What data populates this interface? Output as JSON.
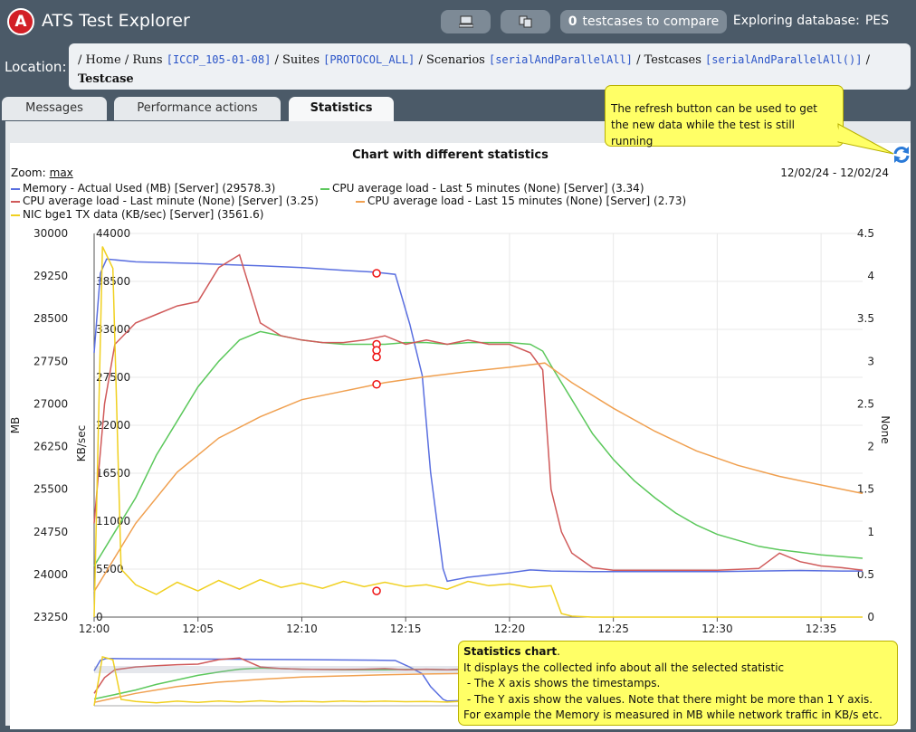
{
  "app": {
    "title": "ATS Test Explorer",
    "logo_text": "A"
  },
  "toolbar": {
    "compare_count": "0",
    "compare_label": "testcases to compare",
    "database_label": "Exploring database:",
    "database_name": "PES",
    "icons": [
      "computer-icon",
      "copy-icon"
    ]
  },
  "location": {
    "label": "Location:",
    "crumbs": [
      {
        "text": "Home",
        "link": ""
      },
      {
        "text": "Runs",
        "link": "[ICCP_105-01-08]"
      },
      {
        "text": "Suites",
        "link": "[PROTOCOL_ALL]"
      },
      {
        "text": "Scenarios",
        "link": "[serialAndParallelAll]"
      },
      {
        "text": "Testcases",
        "link": "[serialAndParallelAll()]"
      },
      {
        "text": "Testcase",
        "link": ""
      }
    ]
  },
  "tabs": [
    {
      "label": "Messages",
      "active": false
    },
    {
      "label": "Performance actions",
      "active": false
    },
    {
      "label": "Statistics",
      "active": true
    }
  ],
  "chart_header": {
    "zoom_label": "Zoom:",
    "zoom_value": "max",
    "date_range": "12/02/24 - 12/02/24"
  },
  "tooltip_refresh": "The refresh button can be used to get the new data while the test is still running",
  "tooltip_stats": {
    "title": "Statistics chart",
    "line1": "It displays the collected info about all the selected statistic",
    "line2": " - The X axis shows the timestamps.",
    "line3": " - The Y axis show the values. Note that there might be more than 1 Y axis.",
    "line4": "For example the Memory is measured in MB while network traffic in KB/s etc."
  },
  "colors": {
    "memory": "#5a6fe0",
    "cpu5": "#5cc85c",
    "cpu1": "#d05a5a",
    "cpu15": "#f0a050",
    "nic": "#f0d020",
    "marker": "#ee1111",
    "refresh": "#2a7ad8"
  },
  "chart_data": {
    "type": "line",
    "title": "Chart with different statistics",
    "x_ticks": [
      "12:00",
      "12:05",
      "12:10",
      "12:15",
      "12:20",
      "12:25",
      "12:30",
      "12:35"
    ],
    "x_range_minutes": [
      0,
      37
    ],
    "y_axes": [
      {
        "label": "MB",
        "ticks": [
          "30000",
          "29250",
          "28500",
          "27750",
          "27000",
          "26250",
          "25500",
          "24750",
          "24000",
          "23250"
        ],
        "range": [
          23250,
          30000
        ]
      },
      {
        "label": "KB/sec",
        "ticks": [
          "44000",
          "38500",
          "33000",
          "27500",
          "22000",
          "16500",
          "11000",
          "5500",
          "0"
        ],
        "range": [
          0,
          44000
        ]
      },
      {
        "label": "None",
        "ticks": [
          "4.5",
          "4",
          "3.5",
          "3",
          "2.5",
          "2",
          "1.5",
          "1",
          "0.5",
          "0"
        ],
        "range": [
          0,
          4.5
        ]
      }
    ],
    "series": [
      {
        "name": "Memory - Actual Used (MB) [Server] (29578.3)",
        "axis": 0,
        "color_key": "memory",
        "x": [
          0,
          0.3,
          0.6,
          2,
          5,
          8,
          10,
          12,
          13.5,
          14.5,
          15.2,
          15.8,
          16.2,
          16.8,
          17,
          18,
          20,
          21,
          22,
          24,
          26,
          28,
          30,
          32,
          34,
          36,
          37
        ],
        "y": [
          27900,
          29300,
          29550,
          29500,
          29470,
          29430,
          29400,
          29350,
          29320,
          29280,
          28400,
          27500,
          25800,
          24100,
          23880,
          23950,
          24030,
          24080,
          24060,
          24050,
          24050,
          24050,
          24050,
          24060,
          24070,
          24060,
          24060
        ]
      },
      {
        "name": "CPU average load - Last 5 minutes (None) [Server] (3.34)",
        "axis": 2,
        "color_key": "cpu5",
        "x": [
          0,
          1,
          2,
          3,
          4,
          5,
          6,
          7,
          8,
          9,
          10,
          11,
          12,
          13,
          14,
          15,
          16,
          17,
          18,
          19,
          20,
          21,
          21.6,
          22,
          23,
          24,
          25,
          26,
          27,
          28,
          29,
          30,
          31,
          32,
          33,
          34,
          35,
          36,
          37
        ],
        "y": [
          0.6,
          1.0,
          1.4,
          1.9,
          2.3,
          2.7,
          3.0,
          3.25,
          3.35,
          3.3,
          3.25,
          3.22,
          3.2,
          3.2,
          3.2,
          3.22,
          3.22,
          3.2,
          3.22,
          3.22,
          3.22,
          3.2,
          3.12,
          2.95,
          2.55,
          2.15,
          1.85,
          1.6,
          1.4,
          1.22,
          1.08,
          0.97,
          0.9,
          0.83,
          0.79,
          0.76,
          0.73,
          0.71,
          0.69
        ]
      },
      {
        "name": "CPU average load - Last minute (None) [Server] (3.25)",
        "axis": 2,
        "color_key": "cpu1",
        "x": [
          0,
          0.5,
          1,
          2,
          3,
          4,
          5,
          6,
          7,
          8,
          9,
          10,
          11,
          12,
          13,
          14,
          15,
          16,
          17,
          18,
          19,
          20,
          21,
          21.6,
          22,
          22.5,
          23,
          24,
          25,
          26,
          27,
          28,
          29,
          30,
          31,
          32,
          33,
          34,
          35,
          36,
          37
        ],
        "y": [
          1.1,
          2.5,
          3.2,
          3.45,
          3.55,
          3.65,
          3.7,
          4.1,
          4.25,
          3.45,
          3.3,
          3.25,
          3.22,
          3.22,
          3.25,
          3.3,
          3.2,
          3.25,
          3.2,
          3.25,
          3.2,
          3.2,
          3.1,
          2.9,
          1.5,
          1.0,
          0.75,
          0.58,
          0.55,
          0.55,
          0.55,
          0.55,
          0.55,
          0.55,
          0.56,
          0.57,
          0.75,
          0.65,
          0.6,
          0.58,
          0.55
        ]
      },
      {
        "name": "CPU average load - Last 15 minutes (None) [Server] (2.73)",
        "axis": 2,
        "color_key": "cpu15",
        "x": [
          0,
          2,
          4,
          6,
          8,
          10,
          12,
          14,
          16,
          18,
          20,
          21.7,
          23,
          25,
          27,
          29,
          31,
          33,
          35,
          37
        ],
        "y": [
          0.3,
          1.1,
          1.7,
          2.1,
          2.35,
          2.55,
          2.65,
          2.75,
          2.82,
          2.88,
          2.93,
          2.98,
          2.75,
          2.45,
          2.18,
          1.95,
          1.78,
          1.65,
          1.55,
          1.45
        ]
      },
      {
        "name": "NIC bge1 TX data (KB/sec) [Server] (3561.6)",
        "axis": 1,
        "color_key": "nic",
        "x": [
          0,
          0.4,
          0.9,
          1.3,
          2,
          3,
          4,
          5,
          6,
          7,
          8,
          9,
          10,
          11,
          12,
          13,
          14,
          15,
          16,
          17,
          18,
          19,
          20,
          21,
          22,
          22.5,
          23,
          24,
          25,
          26,
          30,
          34,
          37
        ],
        "y": [
          0,
          42500,
          40000,
          5500,
          3700,
          2600,
          4000,
          3000,
          4200,
          3200,
          4300,
          3400,
          3900,
          3300,
          4100,
          3500,
          4000,
          3500,
          3700,
          3200,
          4100,
          3600,
          3800,
          3400,
          3600,
          400,
          100,
          0,
          0,
          0,
          0,
          0,
          0
        ]
      }
    ],
    "markers": [
      {
        "axis": 0,
        "x": 13.6,
        "y": 29300
      },
      {
        "axis": 2,
        "x": 13.6,
        "y": 3.2
      },
      {
        "axis": 2,
        "x": 13.6,
        "y": 3.13
      },
      {
        "axis": 2,
        "x": 13.6,
        "y": 3.05
      },
      {
        "axis": 2,
        "x": 13.6,
        "y": 2.73
      },
      {
        "axis": 1,
        "x": 13.6,
        "y": 3000
      }
    ]
  }
}
